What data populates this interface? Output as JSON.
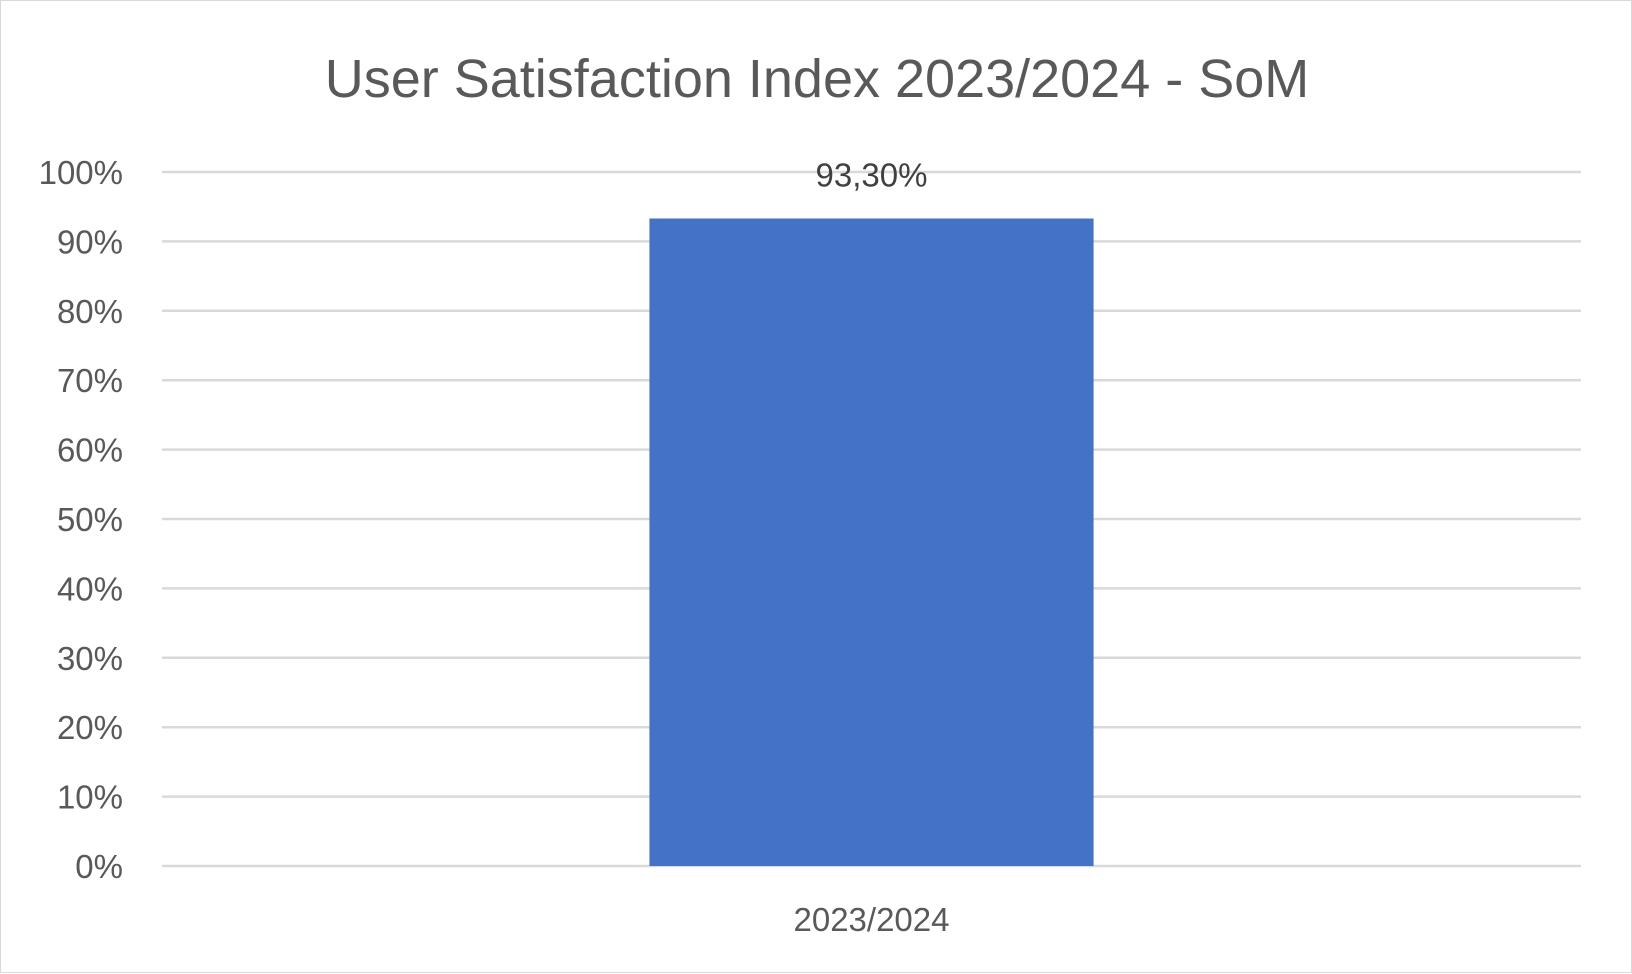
{
  "chart_data": {
    "type": "bar",
    "title": "User Satisfaction Index 2023/2024 - SoM",
    "xlabel": "",
    "ylabel": "",
    "categories": [
      "2023/2024"
    ],
    "values": [
      93.3
    ],
    "data_labels": [
      "93,30%"
    ],
    "ylim": [
      0,
      100
    ],
    "y_ticks": [
      0,
      10,
      20,
      30,
      40,
      50,
      60,
      70,
      80,
      90,
      100
    ],
    "y_tick_labels": [
      "0%",
      "10%",
      "20%",
      "30%",
      "40%",
      "50%",
      "60%",
      "70%",
      "80%",
      "90%",
      "100%"
    ],
    "grid": true,
    "legend": "none",
    "colors": {
      "bar": "#4472C4",
      "grid": "#D9D9D9",
      "text": "#595959"
    }
  }
}
